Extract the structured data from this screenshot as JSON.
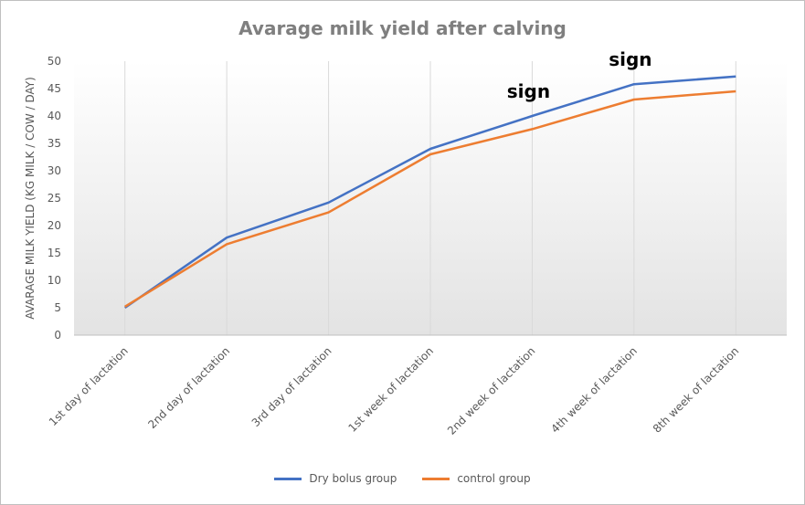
{
  "chart_data": {
    "type": "line",
    "title": "Avarage milk yield after calving",
    "ylabel": "AVARAGE  MILK YIELD (KG MILK / COW / DAY)",
    "xlabel": "",
    "categories": [
      "1st day of lactation",
      "2nd day of lactation",
      "3rd day of lactation",
      "1st week of lactation",
      "2nd week of lactation",
      "4th week of lactation",
      "8th week of lactation"
    ],
    "series": [
      {
        "name": "Dry bolus group",
        "color": "#4472c4",
        "values": [
          5.0,
          17.8,
          24.2,
          34.0,
          40.0,
          45.8,
          47.2
        ]
      },
      {
        "name": "control group",
        "color": "#ed7d31",
        "values": [
          5.2,
          16.6,
          22.4,
          33.0,
          37.6,
          43.0,
          44.5
        ]
      }
    ],
    "ylim": [
      0,
      50
    ],
    "yticks": [
      0,
      5,
      10,
      15,
      20,
      25,
      30,
      35,
      40,
      45,
      50
    ],
    "grid": "vertical",
    "legend": "bottom",
    "annotations": [
      {
        "text": "sign",
        "category": "2nd week of lactation"
      },
      {
        "text": "sign",
        "category": "4th week of lactation"
      }
    ]
  }
}
